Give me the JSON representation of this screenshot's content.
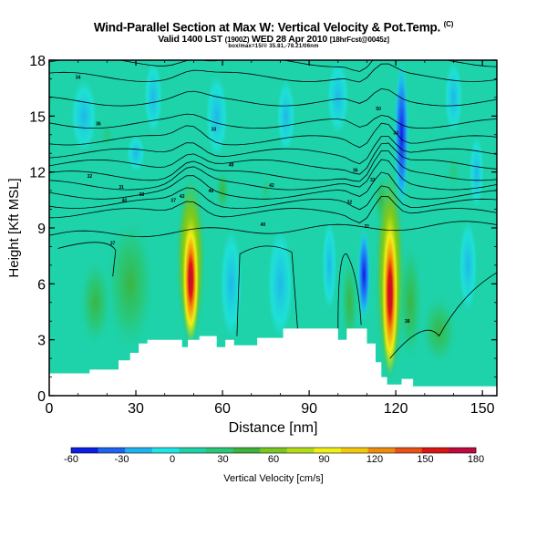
{
  "chart_data": {
    "type": "heatmap",
    "title": "Wind-Parallel Section at Max W: Vertical Velocity & Pot.Temp.",
    "title_mark": "(C)",
    "subtitle_main": "Valid 1400 LST",
    "subtitle_utc": "(1900Z)",
    "subtitle_date": "WED 28 Apr 2010",
    "subtitle_run": "[18hrFcst@0045z]",
    "subtitle_extra": "box/max=15/© 35.81,-78.21/06nm",
    "xlabel": "Distance [nm]",
    "ylabel": "Height [Kft MSL]",
    "xlim": [
      0,
      155
    ],
    "ylim": [
      0,
      18
    ],
    "xticks": [
      "0",
      "30",
      "60",
      "90",
      "120",
      "150"
    ],
    "yticks": [
      "0",
      "3",
      "6",
      "9",
      "12",
      "15",
      "18"
    ],
    "colorbar_label": "Vertical Velocity [cm/s]",
    "colorbar_ticks": [
      "-60",
      "-30",
      "0",
      "30",
      "60",
      "90",
      "120",
      "150",
      "180"
    ],
    "colorbar_range": [
      -60,
      180
    ],
    "colors": [
      "#0a1ee6",
      "#1e64f0",
      "#1eb4f0",
      "#1ee6e6",
      "#1ed2aa",
      "#28c878",
      "#3cb43c",
      "#78c81e",
      "#b4dc14",
      "#f0f014",
      "#f5c80a",
      "#f08c0a",
      "#eb5014",
      "#dc1414",
      "#be0a3c"
    ],
    "updraft_cores": [
      {
        "x": 49,
        "y_base": 3,
        "y_top": 11.5,
        "peak": 180
      },
      {
        "x": 118,
        "y_base": 1,
        "y_top": 12,
        "peak": 180
      }
    ],
    "downdraft_cores": [
      {
        "x": 109,
        "y_base": 4,
        "y_top": 9,
        "peak": -60
      },
      {
        "x": 122,
        "y_base": 10,
        "y_top": 18,
        "peak": -60
      }
    ],
    "terrain": [
      [
        0,
        1.2
      ],
      [
        14,
        1.2
      ],
      [
        14,
        1.4
      ],
      [
        24,
        1.4
      ],
      [
        24,
        1.9
      ],
      [
        28,
        1.9
      ],
      [
        28,
        2.3
      ],
      [
        31,
        2.3
      ],
      [
        31,
        2.8
      ],
      [
        34,
        2.8
      ],
      [
        34,
        3.0
      ],
      [
        46,
        3.0
      ],
      [
        46,
        2.6
      ],
      [
        48,
        2.6
      ],
      [
        48,
        3.0
      ],
      [
        52,
        3.0
      ],
      [
        52,
        3.2
      ],
      [
        58,
        3.2
      ],
      [
        58,
        2.6
      ],
      [
        61,
        2.6
      ],
      [
        61,
        3.0
      ],
      [
        64,
        3.0
      ],
      [
        64,
        2.7
      ],
      [
        72,
        2.7
      ],
      [
        72,
        3.1
      ],
      [
        81,
        3.1
      ],
      [
        81,
        3.6
      ],
      [
        100,
        3.6
      ],
      [
        100,
        3.0
      ],
      [
        103,
        3.0
      ],
      [
        103,
        3.6
      ],
      [
        110,
        3.6
      ],
      [
        110,
        2.8
      ],
      [
        113,
        2.8
      ],
      [
        113,
        1.8
      ],
      [
        115,
        1.8
      ],
      [
        115,
        1.0
      ],
      [
        117,
        1.0
      ],
      [
        117,
        0.6
      ],
      [
        122,
        0.6
      ],
      [
        122,
        0.9
      ],
      [
        126,
        0.9
      ],
      [
        126,
        0.5
      ],
      [
        155,
        0.5
      ]
    ],
    "theta_labels": [
      "34",
      "36",
      "33",
      "32",
      "31",
      "40",
      "38",
      "37",
      "48",
      "42",
      "50"
    ]
  }
}
